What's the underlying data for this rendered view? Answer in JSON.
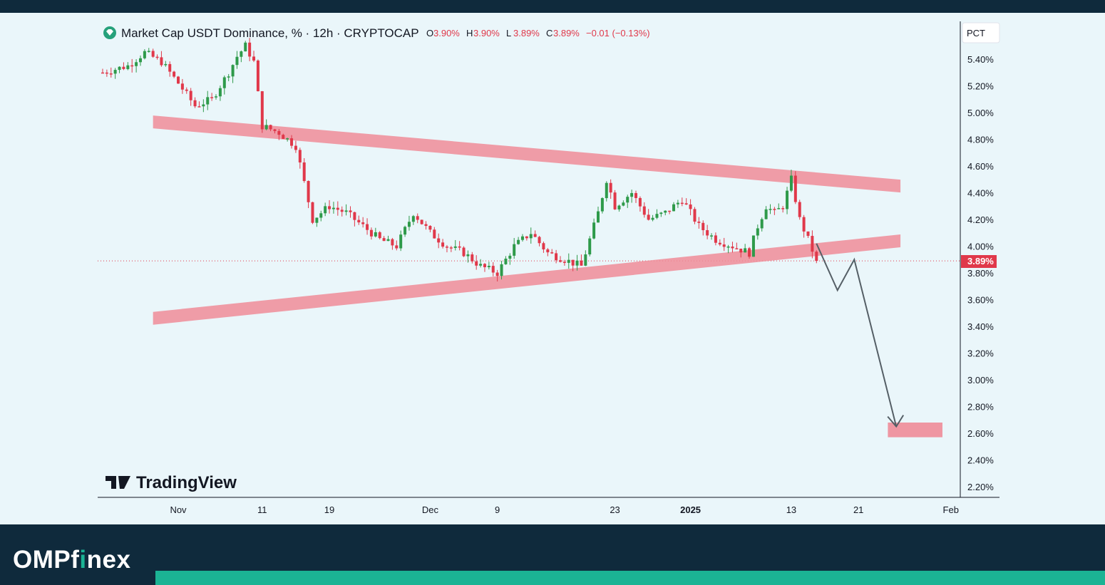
{
  "header": {
    "symbol_title": "Market Cap USDT Dominance, % · 12h · CRYPTOCAP",
    "ohlc": [
      {
        "label": "O",
        "value": "3.90%"
      },
      {
        "label": "H",
        "value": "3.90%"
      },
      {
        "label": "L",
        "value": "3.89%"
      },
      {
        "label": "C",
        "value": "3.89%"
      }
    ],
    "change": "−0.01 (−0.13%)"
  },
  "price_axis": {
    "scale_label": "PCT",
    "current_price_label": "3.89%"
  },
  "watermark": "TradingView",
  "brand": {
    "part1": "OMP",
    "part2": "f",
    "part3": "i",
    "part4": "nex"
  },
  "colors": {
    "up": "#2e9a4a",
    "down": "#e0384a",
    "band": "#f08c98",
    "arrow": "#555f66",
    "accent": "#1bb394",
    "frame": "#0f2a3c"
  },
  "chart_data": {
    "type": "candlestick",
    "title": "Market Cap USDT Dominance, % · 12h · CRYPTOCAP",
    "ylabel": "PCT",
    "ylim": [
      2.1,
      5.6
    ],
    "yticks": [
      "5.40%",
      "5.20%",
      "5.00%",
      "4.80%",
      "4.60%",
      "4.40%",
      "4.20%",
      "4.00%",
      "3.80%",
      "3.60%",
      "3.40%",
      "3.20%",
      "3.00%",
      "2.80%",
      "2.60%",
      "2.40%",
      "2.20%"
    ],
    "x_axis_labels": [
      "Nov",
      "11",
      "19",
      "Dec",
      "9",
      "23",
      "2025",
      "13",
      "21",
      "Feb"
    ],
    "x_axis_label_days": [
      0,
      10,
      18,
      30,
      38,
      52,
      61,
      73,
      81,
      92
    ],
    "last_price": 3.89,
    "grid": false,
    "price_path_days": [
      -9,
      -6,
      -4,
      -2,
      0,
      2,
      4,
      6,
      7,
      8,
      9,
      10,
      12,
      14,
      16,
      18,
      20,
      22,
      24,
      26,
      28,
      30,
      32,
      34,
      36,
      38,
      40,
      42,
      44,
      46,
      48,
      50,
      51,
      52,
      54,
      56,
      58,
      60,
      62,
      64,
      66,
      68,
      69,
      70,
      71,
      72,
      73,
      74,
      75,
      76
    ],
    "price_path_values": [
      5.3,
      5.35,
      5.45,
      5.38,
      5.22,
      5.05,
      5.1,
      5.3,
      5.42,
      5.5,
      5.38,
      4.9,
      4.85,
      4.75,
      4.2,
      4.3,
      4.25,
      4.15,
      4.05,
      4.0,
      4.25,
      4.1,
      4.0,
      3.95,
      3.85,
      3.8,
      4.0,
      4.1,
      3.95,
      3.9,
      3.85,
      4.25,
      4.5,
      4.3,
      4.4,
      4.2,
      4.25,
      4.35,
      4.15,
      4.05,
      4.0,
      3.95,
      4.15,
      4.3,
      4.25,
      4.3,
      4.5,
      4.2,
      4.05,
      3.89
    ],
    "series": [
      {
        "kind": "band",
        "start_day": -3,
        "start_value": 4.93,
        "end_day": 86,
        "end_value": 4.45
      },
      {
        "kind": "band",
        "start_day": -3,
        "start_value": 3.46,
        "end_day": 86,
        "end_value": 4.04
      },
      {
        "kind": "projection",
        "days": [
          76,
          78.5,
          80.5,
          85.5
        ],
        "values": [
          4.02,
          3.67,
          3.9,
          2.65
        ]
      },
      {
        "kind": "target_zone",
        "start_day": 84.5,
        "end_day": 91,
        "low": 2.57,
        "high": 2.68
      }
    ]
  }
}
